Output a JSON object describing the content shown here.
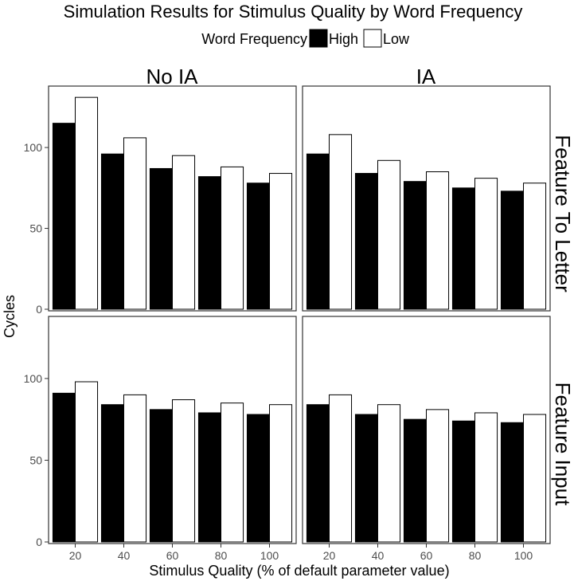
{
  "chart_data": {
    "type": "bar",
    "title": "Simulation Results for Stimulus Quality by Word Frequency",
    "xlabel": "Stimulus Quality (% of default parameter value)",
    "ylabel": "Cycles",
    "legend": {
      "title": "Word Frequency",
      "placement": "top",
      "entries": [
        {
          "label": "High",
          "color": "#000000"
        },
        {
          "label": "Low",
          "color": "#ffffff"
        }
      ]
    },
    "categories": [
      "20",
      "40",
      "60",
      "80",
      "100"
    ],
    "columns": [
      "No IA",
      "IA"
    ],
    "rows": [
      "Feature To Letter",
      "Feature Input"
    ],
    "ylim": [
      0,
      137
    ],
    "yticks": [
      0,
      50,
      100
    ],
    "grid": false,
    "panels": [
      {
        "column": "No IA",
        "row": "Feature To Letter",
        "series": [
          {
            "name": "High",
            "values": [
              115,
              96,
              87,
              82,
              78
            ]
          },
          {
            "name": "Low",
            "values": [
              131,
              106,
              95,
              88,
              84
            ]
          }
        ]
      },
      {
        "column": "IA",
        "row": "Feature To Letter",
        "series": [
          {
            "name": "High",
            "values": [
              96,
              84,
              79,
              75,
              73
            ]
          },
          {
            "name": "Low",
            "values": [
              108,
              92,
              85,
              81,
              78
            ]
          }
        ]
      },
      {
        "column": "No IA",
        "row": "Feature Input",
        "series": [
          {
            "name": "High",
            "values": [
              91,
              84,
              81,
              79,
              78
            ]
          },
          {
            "name": "Low",
            "values": [
              98,
              90,
              87,
              85,
              84
            ]
          }
        ]
      },
      {
        "column": "IA",
        "row": "Feature Input",
        "series": [
          {
            "name": "High",
            "values": [
              84,
              78,
              75,
              74,
              73
            ]
          },
          {
            "name": "Low",
            "values": [
              90,
              84,
              81,
              79,
              78
            ]
          }
        ]
      }
    ]
  }
}
